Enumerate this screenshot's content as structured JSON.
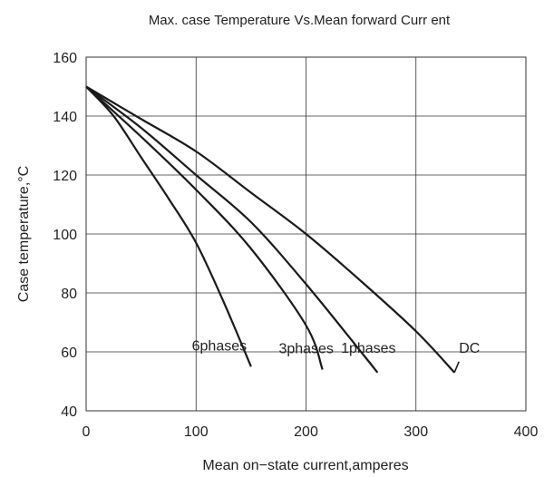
{
  "chart_data": {
    "type": "line",
    "title": "Max. case Temperature  Vs.Mean forward Curr ent",
    "xlabel": "Mean on−state current,amperes",
    "ylabel": "Case temperature,°C",
    "xlim": [
      0,
      400
    ],
    "ylim": [
      40,
      160
    ],
    "xticks": [
      0,
      100,
      200,
      300,
      400
    ],
    "yticks": [
      40,
      60,
      80,
      100,
      120,
      140,
      160
    ],
    "grid": true,
    "series": [
      {
        "name": "6phases",
        "x": [
          0,
          25,
          50,
          75,
          100,
          125,
          150
        ],
        "y": [
          150,
          140,
          126,
          112,
          97,
          77,
          55
        ]
      },
      {
        "name": "3phases",
        "x": [
          0,
          50,
          100,
          150,
          200,
          215
        ],
        "y": [
          150,
          133,
          115,
          95,
          69,
          54
        ]
      },
      {
        "name": "1phases",
        "x": [
          0,
          50,
          100,
          150,
          200,
          250,
          265
        ],
        "y": [
          150,
          136,
          120,
          104,
          83,
          60,
          53
        ]
      },
      {
        "name": "DC",
        "x": [
          0,
          50,
          100,
          150,
          200,
          250,
          300,
          335
        ],
        "y": [
          150,
          139,
          128,
          114,
          100,
          84,
          67,
          53
        ]
      }
    ]
  }
}
